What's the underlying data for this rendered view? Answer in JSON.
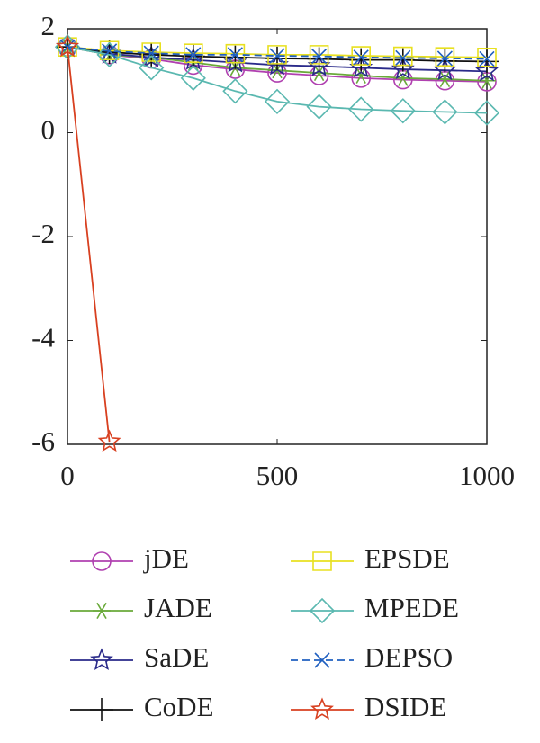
{
  "chart_data": {
    "type": "line",
    "x": [
      0,
      100,
      200,
      300,
      400,
      500,
      600,
      700,
      800,
      900,
      1000
    ],
    "xlim": [
      0,
      1000
    ],
    "xticks": [
      0,
      500,
      1000
    ],
    "ylim": [
      -6,
      2
    ],
    "yticks": [
      -6,
      -4,
      -2,
      0,
      2
    ],
    "grid": false,
    "legend": "bottom",
    "series": [
      {
        "name": "jDE",
        "color": "#b040b0",
        "marker": "circle",
        "dash": "solid",
        "values": [
          1.65,
          1.5,
          1.42,
          1.3,
          1.22,
          1.15,
          1.1,
          1.05,
          1.02,
          1.0,
          0.98
        ]
      },
      {
        "name": "JADE",
        "color": "#6aaa3a",
        "marker": "asterisk",
        "dash": "solid",
        "values": [
          1.65,
          1.5,
          1.45,
          1.35,
          1.25,
          1.2,
          1.15,
          1.1,
          1.05,
          1.03,
          1.0
        ]
      },
      {
        "name": "SaDE",
        "color": "#2a2a8a",
        "marker": "star",
        "dash": "solid",
        "values": [
          1.65,
          1.52,
          1.45,
          1.4,
          1.35,
          1.3,
          1.28,
          1.25,
          1.22,
          1.2,
          1.18
        ]
      },
      {
        "name": "CoDE",
        "color": "#111111",
        "marker": "plus",
        "dash": "solid",
        "values": [
          1.65,
          1.55,
          1.5,
          1.47,
          1.45,
          1.43,
          1.42,
          1.4,
          1.4,
          1.38,
          1.37
        ]
      },
      {
        "name": "EPSDE",
        "color": "#e8e020",
        "marker": "square",
        "dash": "solid",
        "values": [
          1.65,
          1.58,
          1.55,
          1.53,
          1.52,
          1.5,
          1.5,
          1.48,
          1.47,
          1.46,
          1.45
        ]
      },
      {
        "name": "MPEDE",
        "color": "#5ab8b0",
        "marker": "diamond",
        "dash": "solid",
        "values": [
          1.65,
          1.5,
          1.25,
          1.05,
          0.8,
          0.6,
          0.5,
          0.45,
          0.42,
          0.4,
          0.38
        ]
      },
      {
        "name": "DEPSO",
        "color": "#2060c0",
        "marker": "x",
        "dash": "dashed",
        "values": [
          1.65,
          1.57,
          1.53,
          1.5,
          1.5,
          1.48,
          1.47,
          1.45,
          1.44,
          1.43,
          1.42
        ]
      },
      {
        "name": "DSIDE",
        "color": "#d84020",
        "marker": "star",
        "dash": "solid",
        "values": [
          1.65,
          -5.95,
          null,
          null,
          null,
          null,
          null,
          null,
          null,
          null,
          null
        ]
      }
    ]
  }
}
